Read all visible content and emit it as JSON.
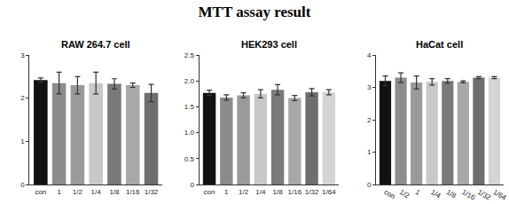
{
  "title": "MTT assay result",
  "chart_data": [
    {
      "type": "bar",
      "title": "RAW 264.7 cell",
      "categories": [
        "con",
        "1",
        "1/2",
        "1/4",
        "1/8",
        "1/16",
        "1/32"
      ],
      "values": [
        2.42,
        2.35,
        2.3,
        2.35,
        2.33,
        2.3,
        2.12
      ],
      "errors": [
        0.05,
        0.25,
        0.2,
        0.25,
        0.12,
        0.05,
        0.2
      ],
      "colors": [
        "#111111",
        "#8c8c8c",
        "#9a9a9a",
        "#c8c8c8",
        "#7a7a7a",
        "#a8a8a8",
        "#6e6e6e"
      ],
      "ylim": [
        0,
        3
      ],
      "yticks": [
        0,
        1,
        2,
        3
      ],
      "grid": false
    },
    {
      "type": "bar",
      "title": "HEK293 cell",
      "categories": [
        "con",
        "1",
        "1/2",
        "1/4",
        "1/8",
        "1/16",
        "1/32",
        "1/64"
      ],
      "values": [
        1.77,
        1.68,
        1.72,
        1.75,
        1.83,
        1.67,
        1.78,
        1.78
      ],
      "errors": [
        0.05,
        0.05,
        0.05,
        0.08,
        0.1,
        0.05,
        0.07,
        0.05
      ],
      "colors": [
        "#111111",
        "#8c8c8c",
        "#9a9a9a",
        "#c8c8c8",
        "#7a7a7a",
        "#a8a8a8",
        "#6e6e6e",
        "#d4d4d4"
      ],
      "ylim": [
        0,
        2.5
      ],
      "yticks": [
        0,
        0.5,
        {
          "value": 1,
          "label": "1.0"
        },
        1.5,
        {
          "value": 2,
          "label": "2.0"
        },
        2.5
      ],
      "grid": false
    },
    {
      "type": "bar",
      "title": "HaCat cell",
      "categories": [
        "con",
        "1/2",
        "1",
        "1/4",
        "1/8",
        "1/16",
        "1/32",
        "1/64"
      ],
      "values": [
        3.2,
        3.3,
        3.15,
        3.17,
        3.2,
        3.17,
        3.3,
        3.3
      ],
      "errors": [
        0.15,
        0.15,
        0.2,
        0.1,
        0.07,
        0.03,
        0.03,
        0.03
      ],
      "colors": [
        "#111111",
        "#8c8c8c",
        "#9a9a9a",
        "#c8c8c8",
        "#7a7a7a",
        "#a8a8a8",
        "#6e6e6e",
        "#d4d4d4"
      ],
      "ylim": [
        0,
        4
      ],
      "yticks": [
        0,
        1,
        2,
        3,
        4
      ],
      "grid": false
    }
  ]
}
